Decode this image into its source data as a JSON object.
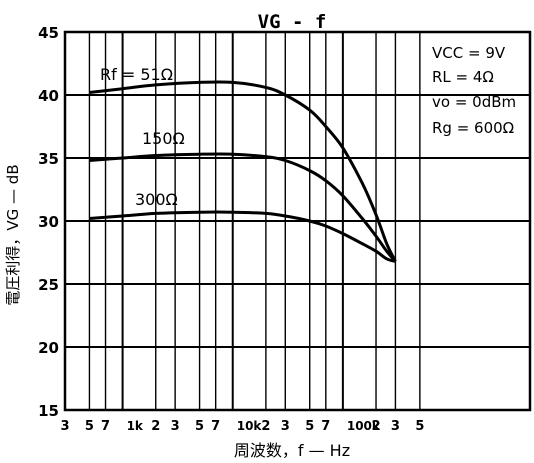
{
  "chart_data": {
    "type": "line",
    "title": "VG - f",
    "xlabel": "周波数，f — Hz",
    "ylabel": "電圧利得，VG — dB",
    "x_scale": "log",
    "xlim": [
      30,
      500000
    ],
    "ylim": [
      15,
      45
    ],
    "grid": true,
    "x_ticks": [
      {
        "value": 30,
        "label": "3"
      },
      {
        "value": 50,
        "label": "5"
      },
      {
        "value": 70,
        "label": "7"
      },
      {
        "value": 100,
        "label": "1k"
      },
      {
        "value": 200,
        "label": "2"
      },
      {
        "value": 300,
        "label": "3"
      },
      {
        "value": 500,
        "label": "5"
      },
      {
        "value": 700,
        "label": "7"
      },
      {
        "value": 1000,
        "label": "10k"
      },
      {
        "value": 2000,
        "label": "2"
      },
      {
        "value": 3000,
        "label": "3"
      },
      {
        "value": 5000,
        "label": "5"
      },
      {
        "value": 7000,
        "label": "7"
      },
      {
        "value": 10000,
        "label": "100k"
      },
      {
        "value": 20000,
        "label": "2"
      },
      {
        "value": 30000,
        "label": "3"
      },
      {
        "value": 50000,
        "label": "5"
      }
    ],
    "y_ticks": [
      15,
      20,
      25,
      30,
      35,
      40,
      45
    ],
    "series": [
      {
        "name": "Rf = 51Ω",
        "x": [
          50,
          100,
          200,
          500,
          1000,
          2000,
          3000,
          5000,
          7000,
          10000,
          15000,
          20000,
          25000,
          30000
        ],
        "y": [
          40.2,
          40.5,
          40.8,
          41.0,
          41.0,
          40.6,
          40.0,
          38.8,
          37.5,
          35.8,
          33.0,
          30.5,
          28.2,
          26.8
        ]
      },
      {
        "name": "150Ω",
        "x": [
          50,
          100,
          200,
          500,
          1000,
          2000,
          3000,
          5000,
          7000,
          10000,
          15000,
          20000,
          25000,
          30000
        ],
        "y": [
          34.8,
          35.0,
          35.2,
          35.3,
          35.3,
          35.1,
          34.8,
          34.0,
          33.2,
          32.0,
          30.2,
          28.8,
          27.6,
          26.8
        ]
      },
      {
        "name": "300Ω",
        "x": [
          50,
          100,
          200,
          500,
          1000,
          2000,
          3000,
          5000,
          7000,
          10000,
          15000,
          20000,
          25000,
          30000
        ],
        "y": [
          30.2,
          30.4,
          30.6,
          30.7,
          30.7,
          30.6,
          30.4,
          30.0,
          29.6,
          29.0,
          28.2,
          27.6,
          27.0,
          26.8
        ]
      }
    ],
    "curve_labels": [
      "Rf = 51Ω",
      "150Ω",
      "300Ω"
    ],
    "conditions": [
      "VCC = 9V",
      "RL = 4Ω",
      "vo = 0dBm",
      "Rg = 600Ω"
    ]
  },
  "colors": {
    "line": "#000000",
    "grid": "#000000",
    "background": "#ffffff"
  }
}
